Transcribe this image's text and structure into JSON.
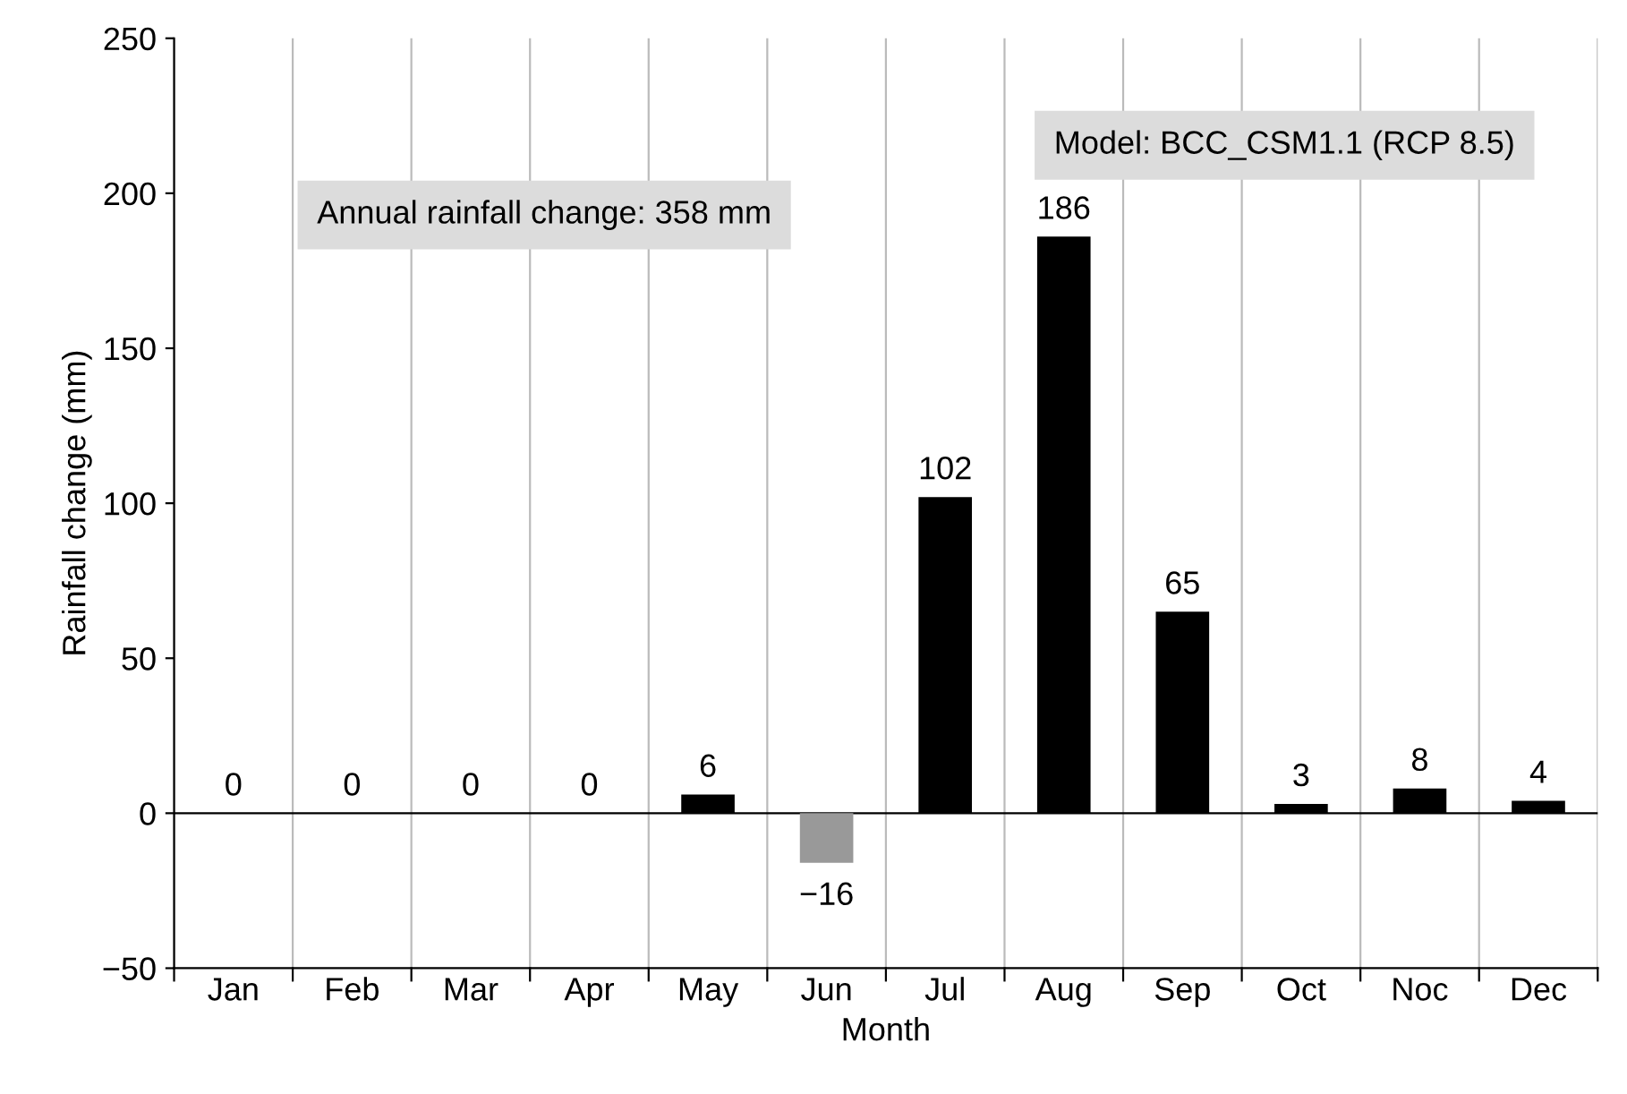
{
  "chart_data": {
    "type": "bar",
    "xlabel": "Month",
    "ylabel": "Rainfall change (mm)",
    "categories": [
      "Jan",
      "Feb",
      "Mar",
      "Apr",
      "May",
      "Jun",
      "Jul",
      "Aug",
      "Sep",
      "Oct",
      "Noc",
      "Dec"
    ],
    "values": [
      0,
      0,
      0,
      0,
      6,
      -16,
      102,
      186,
      65,
      3,
      8,
      4
    ],
    "colors": [
      "#000000",
      "#000000",
      "#000000",
      "#000000",
      "#000000",
      "#999999",
      "#000000",
      "#000000",
      "#000000",
      "#000000",
      "#000000",
      "#000000"
    ],
    "value_labels": [
      "0",
      "0",
      "0",
      "0",
      "6",
      "−16",
      "102",
      "186",
      "65",
      "3",
      "8",
      "4"
    ],
    "ylim": [
      -50,
      250
    ],
    "yticks": [
      {
        "value": -50,
        "label": "−50"
      },
      0,
      50,
      100,
      150,
      200,
      250
    ],
    "grid": "x",
    "annotations": [
      "Annual rainfall change: 358 mm",
      "Model: BCC_CSM1.1 (RCP 8.5)"
    ]
  }
}
